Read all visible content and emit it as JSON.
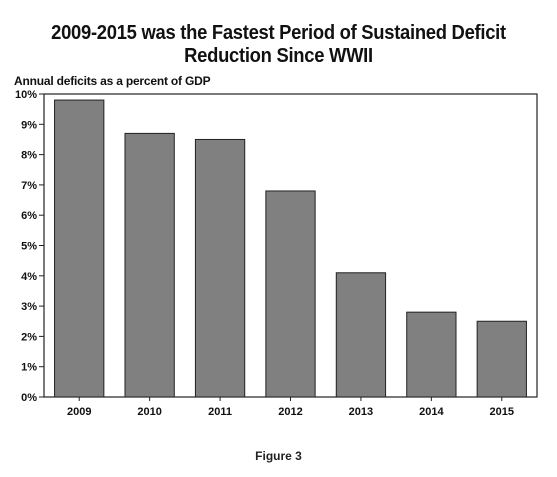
{
  "chart_data": {
    "type": "bar",
    "title_lines": [
      "2009-2015 was the Fastest Period of Sustained Deficit",
      "Reduction Since WWII"
    ],
    "subtitle": "Annual deficits as a percent of GDP",
    "xlabel": "",
    "ylabel": "",
    "categories": [
      "2009",
      "2010",
      "2011",
      "2012",
      "2013",
      "2014",
      "2015"
    ],
    "values": [
      9.8,
      8.7,
      8.5,
      6.8,
      4.1,
      2.8,
      2.5
    ],
    "ylim": [
      0,
      10
    ],
    "yticks": [
      "0%",
      "1%",
      "2%",
      "3%",
      "4%",
      "5%",
      "6%",
      "7%",
      "8%",
      "9%",
      "10%"
    ],
    "bar_color": "#808080",
    "grid": false,
    "legend": "none"
  },
  "caption": "Figure 3"
}
